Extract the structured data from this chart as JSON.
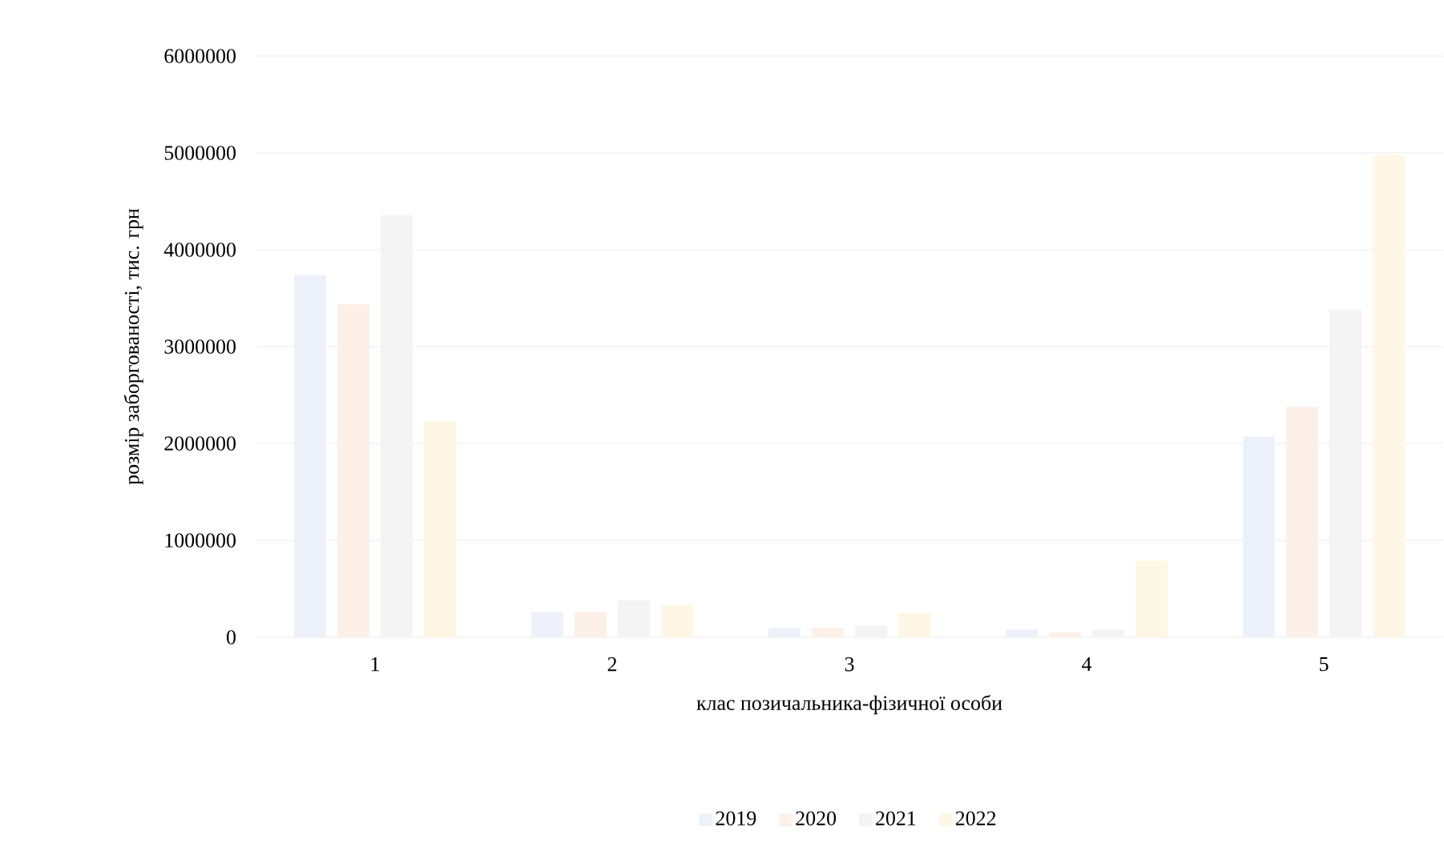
{
  "chart_data": {
    "type": "bar",
    "xlabel": "клас позичальника-фізичної особи",
    "ylabel": "розмір заборгованості, тис. грн",
    "categories": [
      "1",
      "2",
      "3",
      "4",
      "5"
    ],
    "series": [
      {
        "name": "2019",
        "color": "#edf2fa",
        "values": [
          3740000,
          260000,
          100000,
          80000,
          2070000
        ]
      },
      {
        "name": "2020",
        "color": "#fdf0e8",
        "values": [
          3440000,
          260000,
          100000,
          50000,
          2380000
        ]
      },
      {
        "name": "2021",
        "color": "#f4f4f4",
        "values": [
          4360000,
          380000,
          120000,
          80000,
          3380000
        ]
      },
      {
        "name": "2022",
        "color": "#fff7e5",
        "values": [
          2230000,
          330000,
          250000,
          790000,
          4980000
        ]
      }
    ],
    "ylim": [
      0,
      6000000
    ],
    "yticks": [
      0,
      1000000,
      2000000,
      3000000,
      4000000,
      5000000,
      6000000
    ],
    "grid": "y",
    "legend": "bottom"
  }
}
